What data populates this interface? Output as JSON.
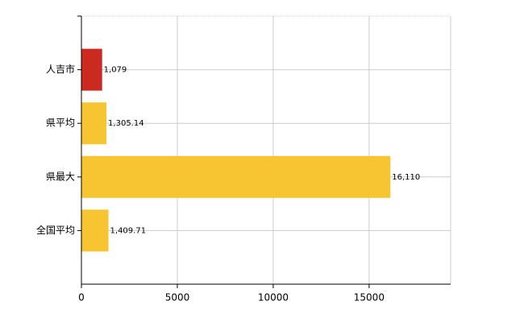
{
  "chart_data": {
    "type": "hbar",
    "categories": [
      "人吉市",
      "県平均",
      "県最大",
      "全国平均"
    ],
    "values": [
      1079,
      1305.14,
      16110,
      1409.71
    ],
    "value_labels": [
      "1,079",
      "1,305.14",
      "16,110",
      "1,409.71"
    ],
    "colors": [
      "#cc2a1e",
      "#f7c531",
      "#f7c531",
      "#f7c531"
    ],
    "xlim": [
      0,
      19250
    ],
    "xticks": [
      0,
      5000,
      10000,
      15000
    ],
    "grid": true
  }
}
